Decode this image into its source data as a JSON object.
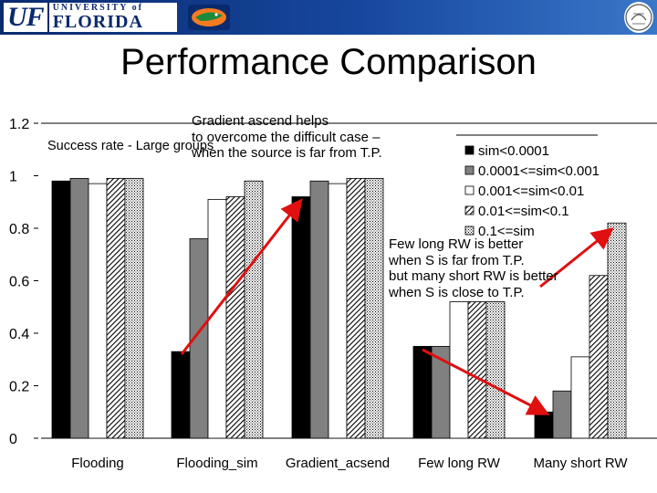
{
  "title": "Performance Comparison",
  "logos": {
    "uf_mark": "UF",
    "uf_line1": "UNIVERSITY of",
    "uf_line2": "FLORIDA"
  },
  "colors": {
    "banner": "#16479e",
    "arrow": "#e01010"
  },
  "chart_data": {
    "type": "bar",
    "title": "Success rate - Large groups",
    "categories": [
      "Flooding",
      "Flooding_sim",
      "Gradient_acsend",
      "Few long RW",
      "Many short RW"
    ],
    "series": [
      {
        "name": "sim<0.0001",
        "values": [
          0.98,
          0.33,
          0.92,
          0.35,
          0.1
        ]
      },
      {
        "name": "0.0001<=sim<0.001",
        "values": [
          0.99,
          0.76,
          0.98,
          0.35,
          0.18
        ]
      },
      {
        "name": "0.001<=sim<0.01",
        "values": [
          0.97,
          0.91,
          0.97,
          0.52,
          0.31
        ]
      },
      {
        "name": "0.01<=sim<0.1",
        "values": [
          0.99,
          0.92,
          0.99,
          0.52,
          0.62
        ]
      },
      {
        "name": "0.1<=sim",
        "values": [
          0.99,
          0.98,
          0.99,
          0.52,
          0.82
        ]
      }
    ],
    "ylim": [
      0,
      1.2
    ],
    "yticks": [
      "0",
      "0.2",
      "0.4",
      "0.6",
      "0.8",
      "1",
      "1.2"
    ],
    "ytick_values": [
      0,
      0.2,
      0.4,
      0.6,
      0.8,
      1.0,
      1.2
    ],
    "legend_position": "top-right",
    "grid": false
  },
  "annotations": [
    {
      "lines": [
        "Gradient ascend helps",
        "to overcome the difficult case –",
        "when the source is far from T.P."
      ]
    },
    {
      "lines": [
        "Few long RW is better",
        "when S is far from T.P.",
        "but many short RW is better",
        "when S is close to T.P."
      ]
    }
  ]
}
